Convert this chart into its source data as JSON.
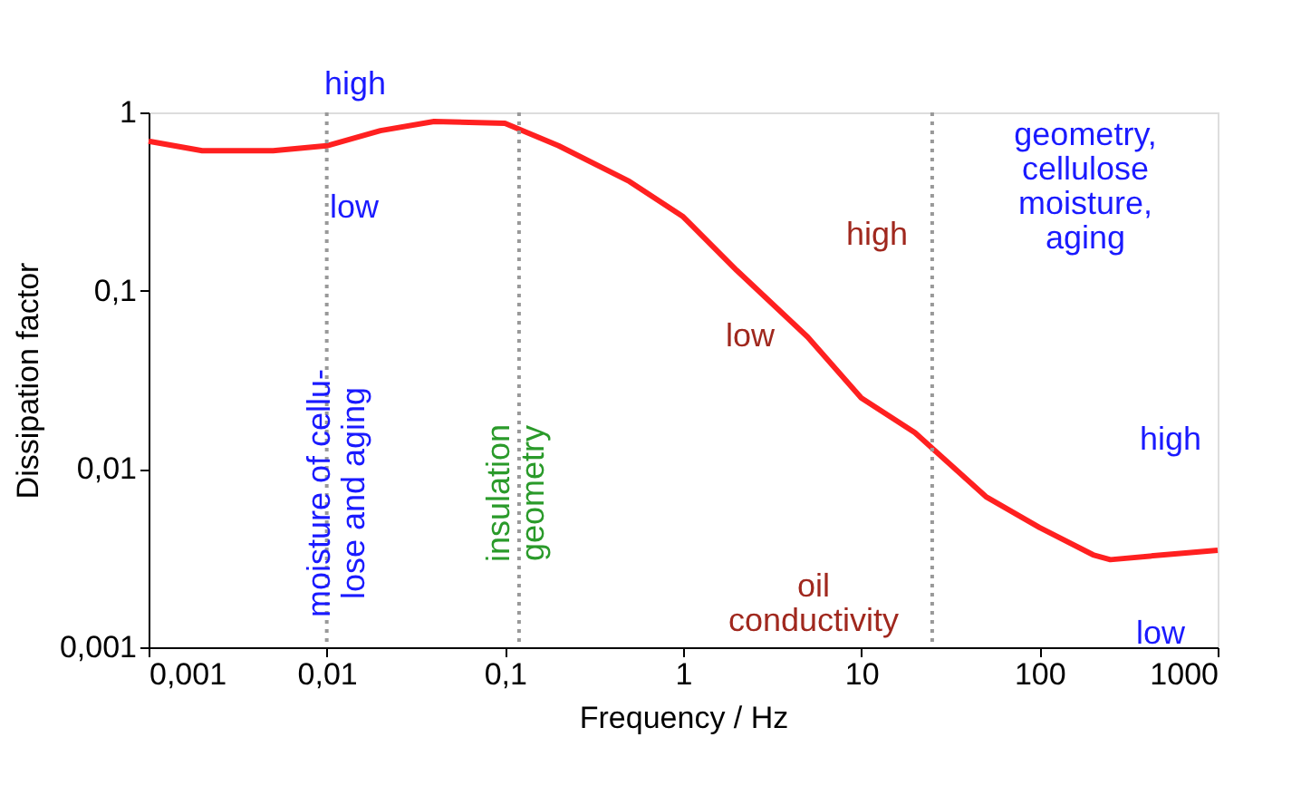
{
  "chart_data": {
    "type": "line",
    "xlabel": "Frequency / Hz",
    "ylabel": "Dissipation factor",
    "x": [
      0.001,
      0.002,
      0.005,
      0.01,
      0.02,
      0.04,
      0.1,
      0.2,
      0.5,
      1,
      2,
      5,
      10,
      20,
      50,
      100,
      200,
      250,
      500,
      1000
    ],
    "series": [
      {
        "color": "#ff2020",
        "values": [
          0.69,
          0.61,
          0.61,
          0.65,
          0.79,
          0.89,
          0.87,
          0.65,
          0.41,
          0.26,
          0.13,
          0.055,
          0.025,
          0.016,
          0.007,
          0.0047,
          0.0033,
          0.0031,
          0.0033,
          0.0035
        ]
      }
    ],
    "log": "xy",
    "xlim": [
      0.001,
      1000
    ],
    "ylim": [
      0.001,
      1
    ],
    "xticks": [
      {
        "value": 0.001,
        "label": "0,001"
      },
      {
        "value": 0.01,
        "label": "0,01"
      },
      {
        "value": 0.1,
        "label": "0,1"
      },
      1,
      10,
      100,
      1000
    ],
    "yticks": [
      {
        "value": 0.001,
        "label": "0,001"
      },
      {
        "value": 0.01,
        "label": "0,01"
      },
      {
        "value": 0.1,
        "label": "0,1"
      },
      1
    ],
    "grid": false,
    "marker": "none",
    "line_style": "solid",
    "ref_lines": [
      {
        "axis": "x",
        "value": 0.01,
        "color": "#999999",
        "line_style": "dotted"
      },
      {
        "axis": "x",
        "value": 0.12,
        "color": "#999999",
        "line_style": "dotted"
      },
      {
        "axis": "x",
        "value": 25,
        "color": "#999999",
        "line_style": "dotted"
      }
    ],
    "annotations": [
      "high",
      "low",
      "geometry,\ncellulose\nmoisture,\naging",
      "high",
      "low",
      "moisture of cellu-\nlose and aging",
      "insulation\ngeometry",
      "oil\nconductivity",
      "high",
      "low"
    ]
  }
}
